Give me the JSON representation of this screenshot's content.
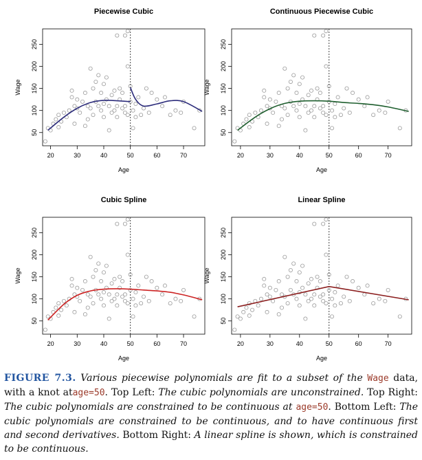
{
  "figure": {
    "panels": [
      {
        "title": "Piecewise Cubic",
        "ylabel": "Wage",
        "xlabel": "Age",
        "curve_color": "#2b2b7a"
      },
      {
        "title": "Continuous Piecewise Cubic",
        "ylabel": "Wage",
        "xlabel": "Age",
        "curve_color": "#1e5e2e"
      },
      {
        "title": "Cubic Spline",
        "ylabel": "Wage",
        "xlabel": "Age",
        "curve_color": "#cc2222"
      },
      {
        "title": "Linear Spline",
        "ylabel": "Wage",
        "xlabel": "Age",
        "curve_color": "#8b1e1e"
      }
    ],
    "x_ticks": [
      "20",
      "30",
      "40",
      "50",
      "60",
      "70"
    ],
    "y_ticks": [
      "50",
      "100",
      "150",
      "200",
      "250"
    ]
  },
  "caption": {
    "label": "FIGURE 7.3.",
    "s1": "Various piecewise polynomials are fit to a subset of the",
    "s1_code": "Wage",
    "s2": "data, with a knot at",
    "s2_code": "age=50",
    "s2_end": ".",
    "tl_label": "Top Left:",
    "tl_text": "The cubic polynomials are unconstrained.",
    "tr_label": "Top Right:",
    "tr_text": "The cubic polynomials are constrained to be continuous at",
    "tr_code": "age=50",
    "tr_end": ".",
    "bl_label": "Bottom Left:",
    "bl_text": "The cubic polynomials are constrained to be continuous, and to have continuous first and second derivatives.",
    "br_label": "Bottom Right:",
    "br_text": "A linear spline is shown, which is constrained to be continuous."
  },
  "chart_data": [
    {
      "type": "scatter",
      "title": "Piecewise Cubic",
      "xlabel": "Age",
      "ylabel": "Wage",
      "xlim": [
        17,
        78
      ],
      "ylim": [
        20,
        285
      ],
      "knot": 50,
      "grid": false,
      "points": {
        "x": [
          18,
          19,
          20,
          21,
          22,
          23,
          23,
          24,
          25,
          26,
          27,
          28,
          28,
          29,
          29,
          30,
          30,
          31,
          32,
          33,
          33,
          34,
          34,
          35,
          35,
          36,
          36,
          37,
          37,
          38,
          38,
          39,
          39,
          40,
          40,
          40,
          41,
          41,
          42,
          42,
          43,
          43,
          44,
          44,
          45,
          45,
          45,
          46,
          46,
          47,
          47,
          48,
          48,
          48,
          49,
          49,
          49,
          50,
          50,
          50,
          51,
          51,
          52,
          52,
          53,
          54,
          55,
          56,
          57,
          58,
          60,
          62,
          63,
          65,
          67,
          69,
          70,
          74,
          76
        ],
        "y": [
          30,
          60,
          55,
          70,
          80,
          62,
          90,
          75,
          95,
          85,
          100,
          130,
          145,
          110,
          70,
          105,
          125,
          95,
          120,
          65,
          140,
          110,
          80,
          195,
          105,
          90,
          150,
          120,
          165,
          180,
          110,
          140,
          100,
          115,
          160,
          85,
          125,
          175,
          110,
          55,
          135,
          95,
          100,
          145,
          110,
          270,
          85,
          125,
          150,
          105,
          140,
          270,
          95,
          110,
          200,
          280,
          90,
          120,
          155,
          285,
          100,
          60,
          85,
          115,
          130,
          90,
          105,
          150,
          95,
          140,
          125,
          110,
          130,
          90,
          100,
          95,
          120,
          60,
          100
        ]
      },
      "curves": [
        {
          "name": "left",
          "x": [
            19,
            25,
            30,
            35,
            40,
            45,
            50
          ],
          "y": [
            55,
            85,
            105,
            118,
            123,
            122,
            120
          ]
        },
        {
          "name": "right",
          "x": [
            50,
            52,
            55,
            60,
            65,
            70,
            77
          ],
          "y": [
            152,
            125,
            110,
            115,
            122,
            120,
            98
          ]
        }
      ]
    },
    {
      "type": "scatter",
      "title": "Continuous Piecewise Cubic",
      "xlabel": "Age",
      "ylabel": "Wage",
      "xlim": [
        17,
        78
      ],
      "ylim": [
        20,
        285
      ],
      "knot": 50,
      "grid": false,
      "curves": [
        {
          "name": "fit",
          "x": [
            19,
            25,
            30,
            35,
            40,
            45,
            50,
            55,
            60,
            65,
            70,
            77
          ],
          "y": [
            55,
            85,
            104,
            116,
            121,
            122,
            121,
            118,
            116,
            113,
            108,
            98
          ]
        }
      ]
    },
    {
      "type": "scatter",
      "title": "Cubic Spline",
      "xlabel": "Age",
      "ylabel": "Wage",
      "xlim": [
        17,
        78
      ],
      "ylim": [
        20,
        285
      ],
      "knot": 50,
      "grid": false,
      "curves": [
        {
          "name": "fit",
          "x": [
            19,
            25,
            30,
            35,
            40,
            45,
            50,
            55,
            60,
            65,
            70,
            77
          ],
          "y": [
            52,
            88,
            108,
            118,
            122,
            123,
            122,
            120,
            118,
            115,
            109,
            98
          ]
        }
      ]
    },
    {
      "type": "scatter",
      "title": "Linear Spline",
      "xlabel": "Age",
      "ylabel": "Wage",
      "xlim": [
        17,
        78
      ],
      "ylim": [
        20,
        285
      ],
      "knot": 50,
      "grid": false,
      "curves": [
        {
          "name": "fit",
          "x": [
            19,
            50,
            77
          ],
          "y": [
            82,
            128,
            98
          ]
        }
      ]
    }
  ]
}
